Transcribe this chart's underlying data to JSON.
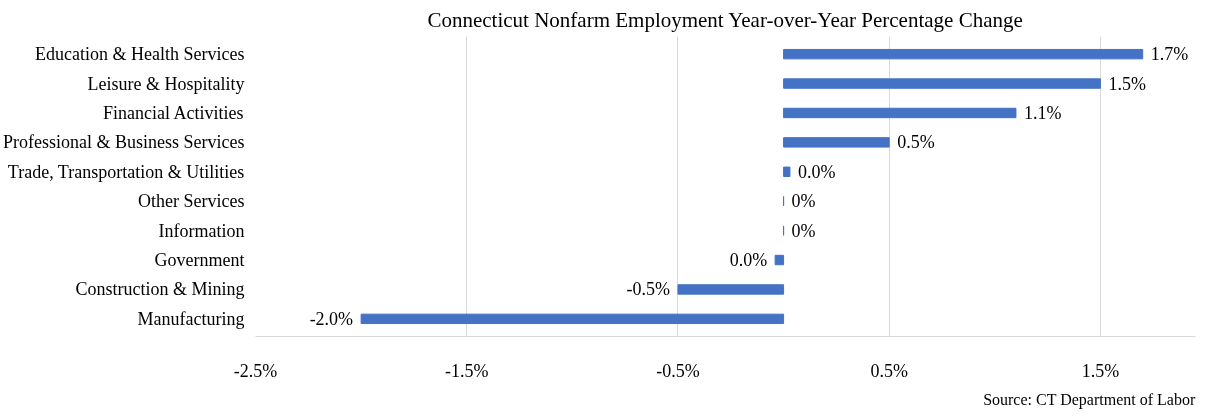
{
  "chart_data": {
    "type": "bar",
    "orientation": "horizontal",
    "title": "Connecticut Nonfarm Employment Year-over-Year Percentage Change",
    "categories": [
      "Education & Health Services",
      "Leisure & Hospitality",
      "Financial Activities",
      "Professional & Business Services",
      "Trade, Transportation & Utilities",
      "Other Services",
      "Information",
      "Government",
      "Construction & Mining",
      "Manufacturing"
    ],
    "values": [
      1.7,
      1.5,
      1.1,
      0.5,
      0.03,
      0,
      0,
      -0.04,
      -0.5,
      -2.0
    ],
    "value_labels": [
      "1.7%",
      "1.5%",
      "1.1%",
      "0.5%",
      "0.0%",
      "0%",
      "0%",
      "0.0%",
      "-0.5%",
      "-2.0%"
    ],
    "color": "#4472c4",
    "xlim": [
      -2.5,
      1.95
    ],
    "xticks": [
      {
        "value": -2.5,
        "label": "-2.5%"
      },
      {
        "value": -1.5,
        "label": "-1.5%"
      },
      {
        "value": -0.5,
        "label": "-0.5%"
      },
      {
        "value": 0.5,
        "label": "0.5%"
      },
      {
        "value": 1.5,
        "label": "1.5%"
      }
    ],
    "grid": "x",
    "annotations": [
      "Source: CT Department of Labor"
    ]
  }
}
